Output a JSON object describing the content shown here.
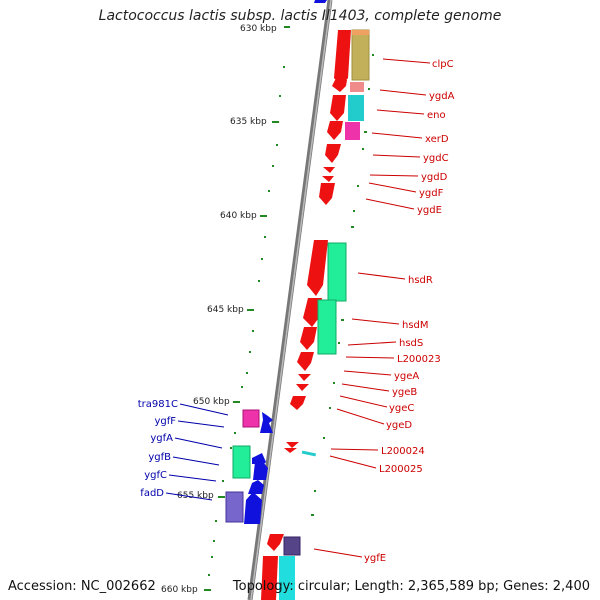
{
  "title": "Lactococcus lactis subsp. lactis Il1403, complete genome",
  "accession": "Accession: NC_002662",
  "topology": "Topology: circular; Length: 2,365,589 bp; Genes: 2,400",
  "colors": {
    "backbone": "#888888",
    "forward_strand": "#ee1111",
    "reverse_strand": "#1111dd",
    "tick": "#228822",
    "right_label": "#cc0000",
    "left_label": "#0000aa"
  },
  "scale_labels": [
    "630 kbp",
    "635 kbp",
    "640 kbp",
    "645 kbp",
    "650 kbp",
    "655 kbp",
    "660 kbp"
  ],
  "right_genes": [
    "clpC",
    "ygdA",
    "eno",
    "xerD",
    "ygdC",
    "ygdD",
    "ygdF",
    "ygdE",
    "hsdR",
    "hsdM",
    "hsdS",
    "L200023",
    "ygeA",
    "ygeB",
    "ygeC",
    "ygeD",
    "L200024",
    "L200025",
    "ygfE"
  ],
  "left_genes": [
    "tra981C",
    "ygfF",
    "ygfA",
    "ygfB",
    "ygfC",
    "fadD"
  ]
}
